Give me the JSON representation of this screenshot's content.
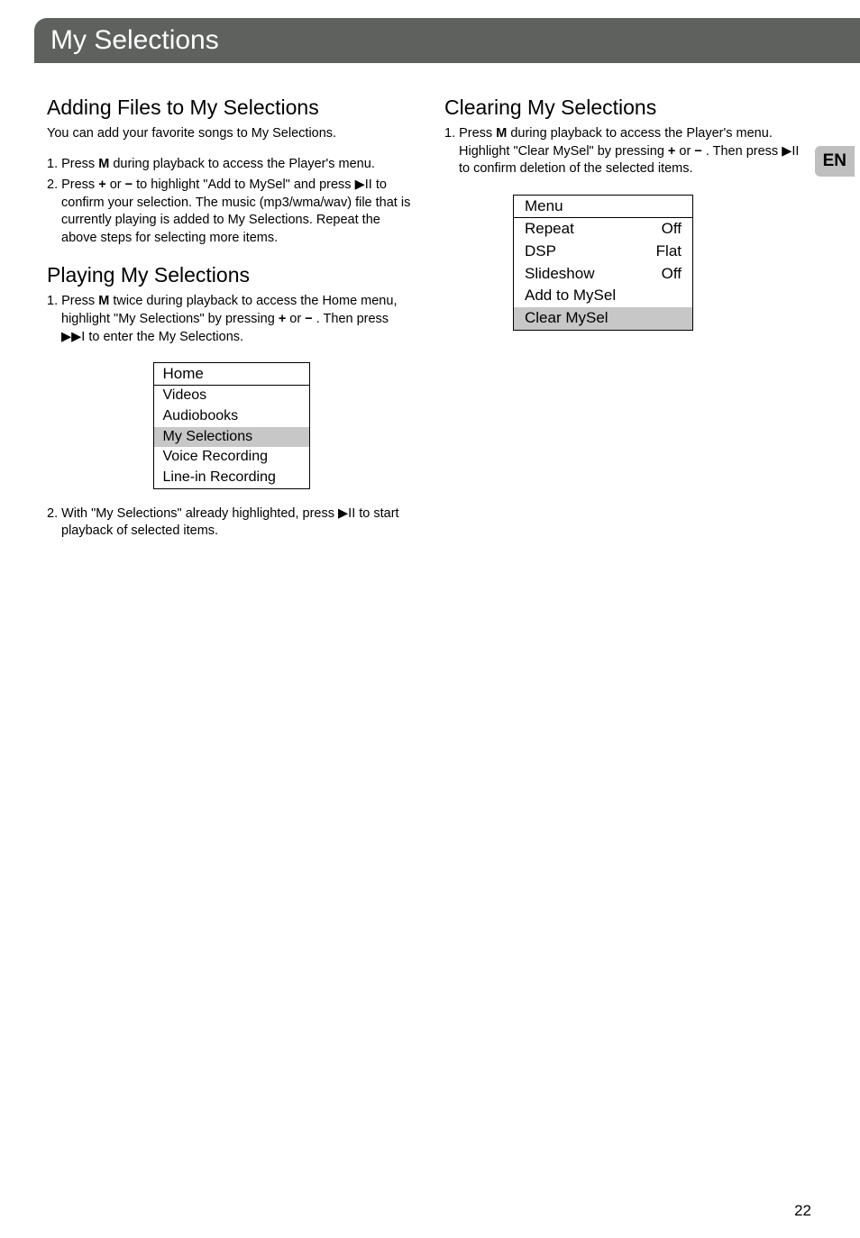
{
  "page_title": "My Selections",
  "left": {
    "adding_heading": "Adding Files to My Selections",
    "adding_sub": "You can add your favorite songs to My Selections.",
    "adding_step1_a": "1. Press ",
    "adding_step1_M": "M",
    "adding_step1_b": " during playback to access the Player's menu.",
    "adding_step2_a": "2. Press ",
    "adding_step2_b": " or ",
    "adding_step2_c": "  to highlight \"Add to MySel\" and press ",
    "adding_step2_d": " to confirm your selection. The music (mp3/wma/wav) file that is currently playing is added to My Selections. Repeat the above steps for selecting more items.",
    "playing_heading": "Playing My Selections",
    "playing_step1_a": "1. Press ",
    "playing_step1_M": "M",
    "playing_step1_b": " twice during playback to access the Home menu, highlight \"My Selections\" by pressing ",
    "playing_step1_c": " or ",
    "playing_step1_d": " . Then press ",
    "playing_step1_e": " to enter the My Selections.",
    "playing_step2_a": "2. With \"My Selections\" already highlighted, press ",
    "playing_step2_b": " to start playback of selected items.",
    "home_box": {
      "header": "Home",
      "r1": "Videos",
      "r2": "Audiobooks",
      "r3": "My Selections",
      "r4": "Voice Recording",
      "r5": "Line-in Recording"
    }
  },
  "right": {
    "clearing_heading": "Clearing My Selections",
    "clearing_step1_a": "1. Press ",
    "clearing_step1_M": "M",
    "clearing_step1_b": " during playback to access the Player's menu. Highlight \"Clear MySel\" by pressing ",
    "clearing_step1_c": " or ",
    "clearing_step1_d": " . Then press ",
    "clearing_step1_e": " to confirm deletion of the selected items.",
    "menu_box": {
      "header": "Menu",
      "r1l": "Repeat",
      "r1r": "Off",
      "r2l": "DSP",
      "r2r": "Flat",
      "r3l": "Slideshow",
      "r3r": "Off",
      "r4": "Add to MySel",
      "r5": "Clear MySel"
    }
  },
  "icons": {
    "plus": "+",
    "minus": "−",
    "play_pause": "▶II",
    "next": "▶▶I"
  },
  "badge": "EN",
  "page_number": "22"
}
